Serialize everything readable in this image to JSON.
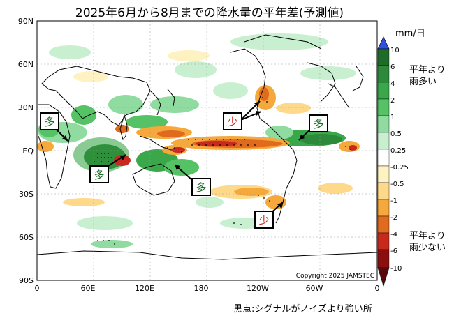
{
  "title": "2025年6月から8月までの降水量の平年差(予測値)",
  "map": {
    "lat_labels": [
      "90N",
      "60N",
      "30N",
      "EQ",
      "30S",
      "60S",
      "90S"
    ],
    "lon_labels": [
      "0",
      "60E",
      "120E",
      "180",
      "120W",
      "60W",
      "0"
    ],
    "copyright": "Copyright 2025 JAMSTEC"
  },
  "colorbar": {
    "unit": "mm/日",
    "ticks": [
      "10",
      "6",
      "4",
      "2",
      "1",
      "0.5",
      "0.25",
      "-0.25",
      "-0.5",
      "-1",
      "-2",
      "-4",
      "-6",
      "-10"
    ],
    "colors": [
      "#1f6b2a",
      "#2d8a3a",
      "#3aa84a",
      "#55c266",
      "#8fdba0",
      "#c8f0d0",
      "#ffffff",
      "#fff2c2",
      "#ffd98a",
      "#f5a83c",
      "#e06a1e",
      "#c8281e",
      "#8a1010"
    ],
    "wet_note": [
      "平年より",
      "雨多い"
    ],
    "dry_note": [
      "平年より",
      "雨少ない"
    ]
  },
  "annotations": [
    {
      "text": "多",
      "color": "#1f6b2a"
    },
    {
      "text": "多",
      "color": "#1f6b2a"
    },
    {
      "text": "多",
      "color": "#1f6b2a"
    },
    {
      "text": "多",
      "color": "#1f6b2a"
    },
    {
      "text": "少",
      "color": "#c8281e"
    },
    {
      "text": "少",
      "color": "#c8281e"
    }
  ],
  "footnote": "黒点:シグナルがノイズより強い所"
}
